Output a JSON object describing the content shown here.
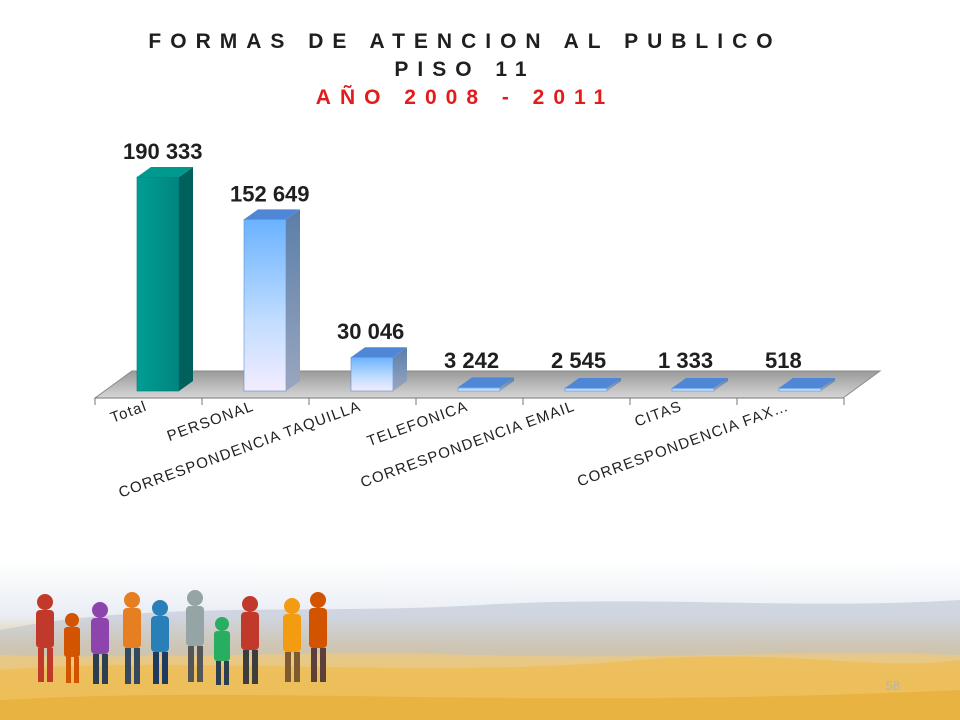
{
  "slide": {
    "title_line1": "FORMAS DE ATENCION AL PUBLICO",
    "title_line2": "PISO 11",
    "subtitle": "AÑO 2008 - 2011",
    "page_number": "58",
    "colors": {
      "title": "#1f1f1f",
      "subtitle": "#e31b1b"
    }
  },
  "chart_data": {
    "type": "bar",
    "title": "FORMAS DE ATENCION AL PUBLICO PISO 11",
    "subtitle": "AÑO 2008 - 2011",
    "categories": [
      "Total",
      "PERSONAL",
      "CORRESPONDENCIA TAQUILLA",
      "TELEFONICA",
      "CORRESPONDENCIA EMAIL",
      "CITAS",
      "CORRESPONDENCIA FAX…"
    ],
    "values": [
      190333,
      152649,
      30046,
      3242,
      2545,
      1333,
      518
    ],
    "value_labels": [
      "190 333",
      "152 649",
      "30 046",
      "3 242",
      "2 545",
      "1 333",
      "518"
    ],
    "ylim": [
      0,
      190333
    ],
    "grid": false,
    "legend": "none",
    "style": "3d-column",
    "colors": {
      "total": "#009991",
      "others": "#8fc4ff"
    }
  }
}
